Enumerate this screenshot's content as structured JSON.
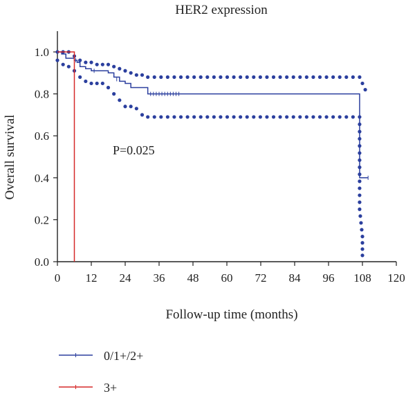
{
  "chart_data": {
    "type": "line",
    "title": "HER2 expression",
    "xlabel": "Follow-up time (months)",
    "ylabel": "Overall survival",
    "xlim": [
      0,
      120
    ],
    "ylim": [
      0,
      1.0
    ],
    "x_ticks": [
      "0",
      "12",
      "24",
      "36",
      "48",
      "60",
      "72",
      "84",
      "96",
      "108",
      "120"
    ],
    "y_ticks": [
      "0.0",
      "0.2",
      "0.4",
      "0.6",
      "0.8",
      "1.0"
    ],
    "annotation": "P=0.025",
    "grid": false,
    "legend_position": "bottom-left",
    "series": [
      {
        "name": "0/1+/2+",
        "color": "#2b3f9e",
        "step_points": [
          [
            0,
            1.0
          ],
          [
            1.5,
            0.99
          ],
          [
            3,
            0.97
          ],
          [
            6,
            0.96
          ],
          [
            7,
            0.95
          ],
          [
            8,
            0.93
          ],
          [
            10,
            0.92
          ],
          [
            12,
            0.91
          ],
          [
            15,
            0.91
          ],
          [
            18,
            0.9
          ],
          [
            20,
            0.88
          ],
          [
            22,
            0.86
          ],
          [
            24,
            0.85
          ],
          [
            26,
            0.83
          ],
          [
            32,
            0.8
          ],
          [
            107,
            0.8
          ],
          [
            107,
            0.4
          ],
          [
            110,
            0.4
          ]
        ],
        "censor_marks": [
          [
            6.5,
            0.96
          ],
          [
            13,
            0.91
          ],
          [
            21,
            0.87
          ],
          [
            33,
            0.8
          ],
          [
            34,
            0.8
          ],
          [
            35,
            0.8
          ],
          [
            36,
            0.8
          ],
          [
            37,
            0.8
          ],
          [
            38,
            0.8
          ],
          [
            39,
            0.8
          ],
          [
            40,
            0.8
          ],
          [
            41,
            0.8
          ],
          [
            42,
            0.8
          ],
          [
            43,
            0.8
          ],
          [
            110,
            0.4
          ]
        ],
        "ci_upper": [
          [
            0,
            1.0
          ],
          [
            2,
            1.0
          ],
          [
            4,
            1.0
          ],
          [
            6,
            0.98
          ],
          [
            8,
            0.96
          ],
          [
            10,
            0.95
          ],
          [
            12,
            0.95
          ],
          [
            14,
            0.94
          ],
          [
            16,
            0.94
          ],
          [
            18,
            0.94
          ],
          [
            20,
            0.93
          ],
          [
            22,
            0.92
          ],
          [
            24,
            0.91
          ],
          [
            26,
            0.9
          ],
          [
            28,
            0.89
          ],
          [
            30,
            0.89
          ],
          [
            32,
            0.88
          ],
          [
            107,
            0.88
          ],
          [
            108,
            0.85
          ],
          [
            109,
            0.82
          ]
        ],
        "ci_lower": [
          [
            0,
            0.96
          ],
          [
            2,
            0.94
          ],
          [
            4,
            0.93
          ],
          [
            6,
            0.91
          ],
          [
            8,
            0.88
          ],
          [
            10,
            0.86
          ],
          [
            12,
            0.85
          ],
          [
            14,
            0.85
          ],
          [
            16,
            0.85
          ],
          [
            18,
            0.83
          ],
          [
            20,
            0.8
          ],
          [
            22,
            0.77
          ],
          [
            24,
            0.74
          ],
          [
            26,
            0.74
          ],
          [
            28,
            0.73
          ],
          [
            30,
            0.7
          ],
          [
            32,
            0.69
          ],
          [
            107,
            0.69
          ],
          [
            107,
            0.62
          ],
          [
            107,
            0.45
          ],
          [
            107,
            0.25
          ],
          [
            108,
            0.12
          ],
          [
            108,
            0.03
          ]
        ]
      },
      {
        "name": "3+",
        "color": "#d62828",
        "step_points": [
          [
            0,
            1.0
          ],
          [
            6,
            1.0
          ],
          [
            6,
            0.0
          ]
        ]
      }
    ]
  }
}
